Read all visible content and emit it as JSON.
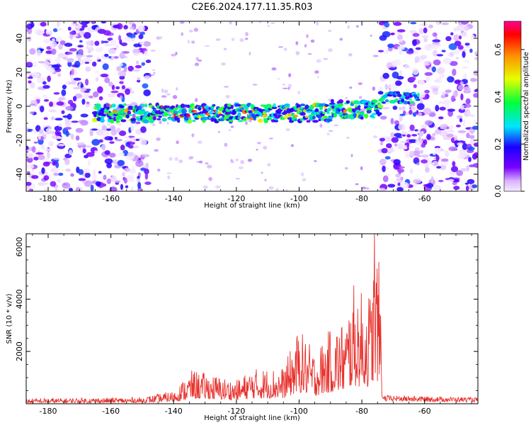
{
  "title": "C2E6.2024.177.11.35.R03",
  "chart_data": [
    {
      "type": "heatmap",
      "xlabel": "Height of straight line (km)",
      "ylabel": "Frequency (Hz)",
      "xlim": [
        -187,
        -43
      ],
      "ylim": [
        -50,
        50
      ],
      "x_ticks": [
        -180,
        -160,
        -140,
        -120,
        -100,
        -80,
        -60
      ],
      "y_ticks": [
        -40,
        -20,
        0,
        20,
        40
      ],
      "colorbar": {
        "label": "Normalized spectral amplitude",
        "range": [
          0,
          0.72
        ],
        "ticks": [
          "0.0",
          "0.2",
          "0.4",
          "0.6"
        ],
        "tick_values": [
          0,
          0.2,
          0.4,
          0.6
        ]
      },
      "band": {
        "x_start": -165,
        "x_end": -74,
        "center_hz": -4,
        "halfwidth_hz": 5,
        "shifted_segment": {
          "x_start": -74,
          "x_end": -62,
          "center_hz": 5
        }
      },
      "noise_regions": [
        [
          -187,
          -148
        ],
        [
          -74,
          -43
        ]
      ]
    },
    {
      "type": "line",
      "xlabel": "Height of straight line (km)",
      "ylabel": "SNR (10 * v/v)",
      "xlim": [
        -187,
        -43
      ],
      "ylim": [
        0,
        6500
      ],
      "x_ticks": [
        -180,
        -160,
        -140,
        -120,
        -100,
        -80,
        -60
      ],
      "y_ticks": [
        2000,
        4000,
        6000
      ],
      "color": "#e8312c",
      "envelope": [
        [
          -187,
          200
        ],
        [
          -150,
          250
        ],
        [
          -140,
          500
        ],
        [
          -134,
          1300
        ],
        [
          -120,
          900
        ],
        [
          -115,
          1350
        ],
        [
          -105,
          1400
        ],
        [
          -100,
          2900
        ],
        [
          -95,
          2000
        ],
        [
          -90,
          2900
        ],
        [
          -85,
          3300
        ],
        [
          -83,
          4600
        ],
        [
          -80,
          4300
        ],
        [
          -77,
          4400
        ],
        [
          -76,
          6500
        ],
        [
          -74,
          5000
        ],
        [
          -73.5,
          400
        ],
        [
          -60,
          350
        ],
        [
          -43,
          300
        ]
      ]
    }
  ]
}
